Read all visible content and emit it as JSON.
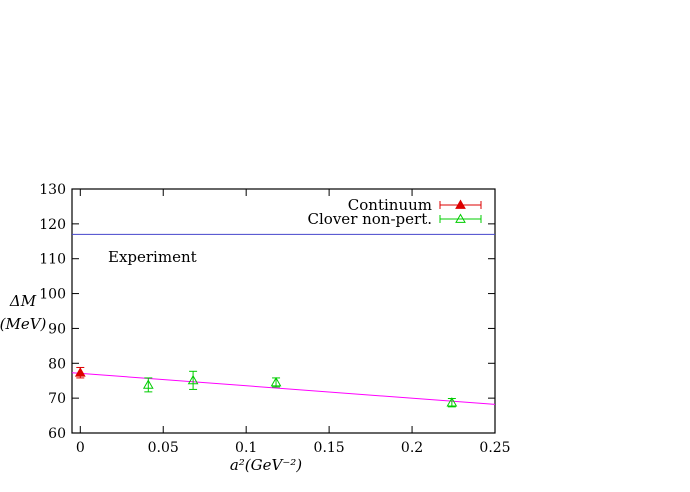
{
  "chart_data": {
    "type": "scatter",
    "xlabel": "a²(GeV⁻²)",
    "ylabel_top": "ΔM",
    "ylabel_bottom": "(MeV)",
    "xlim": [
      -0.005,
      0.25
    ],
    "ylim": [
      60,
      130
    ],
    "x_ticks": [
      0,
      0.05,
      0.1,
      0.15,
      0.2,
      0.25
    ],
    "x_tick_labels": [
      "0",
      "0.05",
      "0.1",
      "0.15",
      "0.2",
      "0.25"
    ],
    "y_ticks": [
      60,
      70,
      80,
      90,
      100,
      110,
      120,
      130
    ],
    "y_tick_labels": [
      "60",
      "70",
      "80",
      "90",
      "100",
      "110",
      "120",
      "130"
    ],
    "grid": false,
    "legend_position": "top-right",
    "annotation": "Experiment",
    "experiment_line": {
      "y": 117,
      "color": "#4444cc"
    },
    "fit_line": {
      "x": [
        -0.005,
        0.25
      ],
      "y": [
        77.3,
        68.2
      ],
      "color": "#ff00ff"
    },
    "series": [
      {
        "name": "Continuum",
        "color": "#dd0000",
        "marker": "filled-triangle",
        "points": [
          {
            "x": 0.0,
            "y": 77.3,
            "err": 1.5
          }
        ]
      },
      {
        "name": "Clover non-pert.",
        "color": "#00cc00",
        "marker": "open-triangle",
        "points": [
          {
            "x": 0.041,
            "y": 73.8,
            "err": 2.0
          },
          {
            "x": 0.068,
            "y": 75.1,
            "err": 2.6
          },
          {
            "x": 0.118,
            "y": 74.5,
            "err": 1.3
          },
          {
            "x": 0.224,
            "y": 68.7,
            "err": 1.2
          }
        ]
      }
    ]
  }
}
